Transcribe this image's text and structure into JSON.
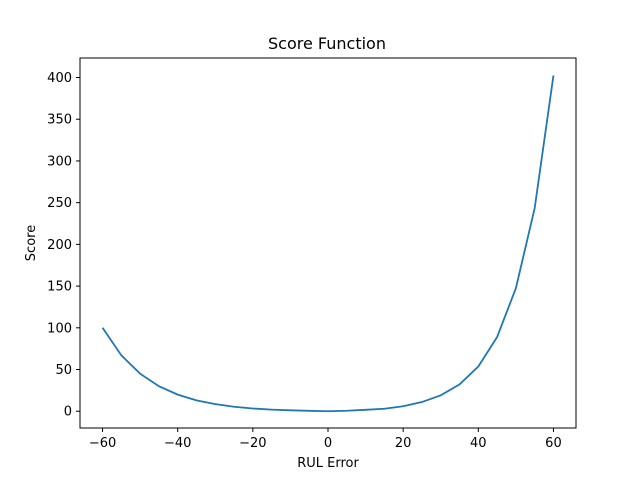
{
  "chart_data": {
    "type": "line",
    "title": "Score Function",
    "xlabel": "RUL Error",
    "ylabel": "Score",
    "xlim": [
      -66,
      66
    ],
    "ylim": [
      -20.1,
      423.4
    ],
    "xticks": [
      -60,
      -40,
      -20,
      0,
      20,
      40,
      60
    ],
    "xtick_labels": [
      "−60",
      "−40",
      "−20",
      "0",
      "20",
      "40",
      "60"
    ],
    "yticks": [
      0,
      50,
      100,
      150,
      200,
      250,
      300,
      350,
      400
    ],
    "ytick_labels": [
      "0",
      "50",
      "100",
      "150",
      "200",
      "250",
      "300",
      "350",
      "400"
    ],
    "grid": false,
    "series": [
      {
        "color": "#1f77b4",
        "x": [
          -60,
          -55,
          -50,
          -45,
          -40,
          -35,
          -30,
          -25,
          -20,
          -15,
          -10,
          -5,
          0,
          5,
          10,
          15,
          20,
          25,
          30,
          35,
          40,
          45,
          50,
          55,
          60
        ],
        "y": [
          100.0,
          67.0,
          45.0,
          30.0,
          19.9,
          13.0,
          8.5,
          5.4,
          3.3,
          1.9,
          1.1,
          0.5,
          0.0,
          0.6,
          1.7,
          3.0,
          6.0,
          11.0,
          19.1,
          32.1,
          53.6,
          88.9,
          147.4,
          243.3,
          402.4
        ]
      }
    ]
  }
}
